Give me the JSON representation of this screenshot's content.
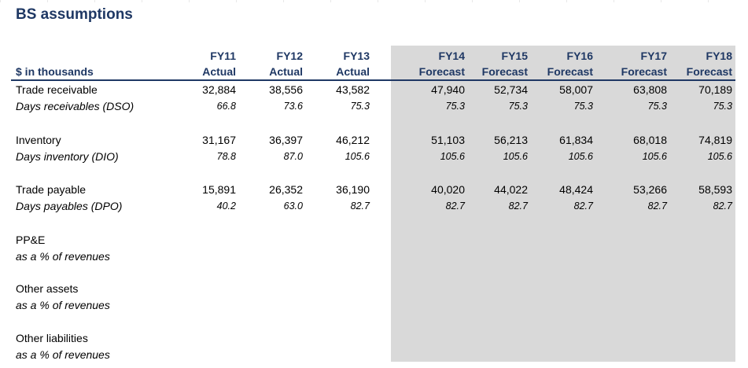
{
  "title": "BS assumptions",
  "header": {
    "units_label": "$ in thousands",
    "columns": [
      {
        "year": "FY11",
        "type": "Actual"
      },
      {
        "year": "FY12",
        "type": "Actual"
      },
      {
        "year": "FY13",
        "type": "Actual"
      },
      {
        "year": "FY14",
        "type": "Forecast"
      },
      {
        "year": "FY15",
        "type": "Forecast"
      },
      {
        "year": "FY16",
        "type": "Forecast"
      },
      {
        "year": "FY17",
        "type": "Forecast"
      },
      {
        "year": "FY18",
        "type": "Forecast"
      }
    ]
  },
  "rows": [
    {
      "label": "Trade receivable",
      "values": [
        "32,884",
        "38,556",
        "43,582",
        "47,940",
        "52,734",
        "58,007",
        "63,808",
        "70,189"
      ]
    },
    {
      "label": "Days receivables (DSO)",
      "values": [
        "66.8",
        "73.6",
        "75.3",
        "75.3",
        "75.3",
        "75.3",
        "75.3",
        "75.3"
      ]
    },
    {
      "label": "Inventory",
      "values": [
        "31,167",
        "36,397",
        "46,212",
        "51,103",
        "56,213",
        "61,834",
        "68,018",
        "74,819"
      ]
    },
    {
      "label": "Days inventory (DIO)",
      "values": [
        "78.8",
        "87.0",
        "105.6",
        "105.6",
        "105.6",
        "105.6",
        "105.6",
        "105.6"
      ]
    },
    {
      "label": "Trade payable",
      "values": [
        "15,891",
        "26,352",
        "36,190",
        "40,020",
        "44,022",
        "48,424",
        "53,266",
        "58,593"
      ]
    },
    {
      "label": "Days payables (DPO)",
      "values": [
        "40.2",
        "63.0",
        "82.7",
        "82.7",
        "82.7",
        "82.7",
        "82.7",
        "82.7"
      ]
    },
    {
      "label": "PP&E"
    },
    {
      "label": "as a % of revenues"
    },
    {
      "label": "Other assets"
    },
    {
      "label": "as a % of revenues"
    },
    {
      "label": "Other liabilities"
    },
    {
      "label": "as a % of revenues"
    }
  ]
}
